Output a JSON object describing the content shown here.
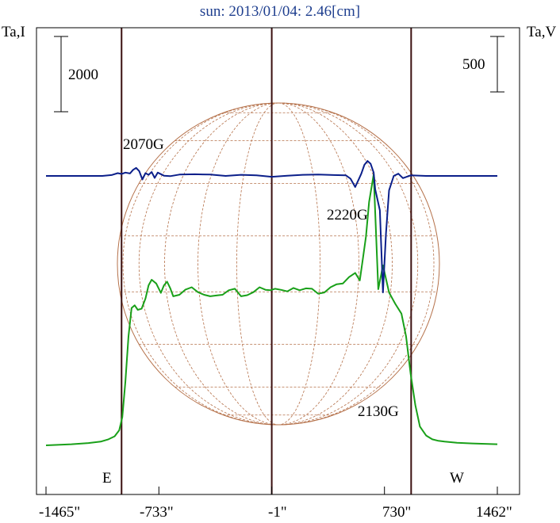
{
  "title": "sun: 2013/01/04: 2.46[cm]",
  "left_axis_label": "Ta,I",
  "right_axis_label": "Ta,V",
  "left_scale_label": "2000",
  "right_scale_label": "500",
  "east_label": "E",
  "west_label": "W",
  "x_ticks": [
    "-1465\"",
    "-733\"",
    "-1\"",
    "730\"",
    "1462\""
  ],
  "annotations": [
    "2070G",
    "2220G",
    "2130G"
  ],
  "colors": {
    "stokes_i": "#19a019",
    "stokes_v": "#0b1f8a",
    "disk": "#b5714a",
    "limb_lines": "#3b1010",
    "title": "#1f3f8f"
  },
  "chart_data": {
    "type": "line",
    "title": "sun: 2013/01/04: 2.46[cm]",
    "xlabel": "",
    "ylabel_left": "Ta,I",
    "ylabel_right": "Ta,V",
    "xlim": [
      -1465,
      1462
    ],
    "x_ticks": [
      -1465,
      -733,
      -1,
      730,
      1462
    ],
    "vertical_lines": [
      -975,
      -1,
      903
    ],
    "scale_bars": {
      "left": 2000,
      "right": 500
    },
    "series": [
      {
        "name": "",
        "axis": "left",
        "x": [
          -1465,
          -1300,
          -1190,
          -1110,
          -1060,
          -1020,
          -990,
          -970,
          -950,
          -930,
          -910,
          -890,
          -870,
          -845,
          -820,
          -800,
          -780,
          -750,
          -720,
          -700,
          -680,
          -660,
          -640,
          -600,
          -560,
          -520,
          -480,
          -440,
          -400,
          -360,
          -320,
          -280,
          -240,
          -200,
          -160,
          -120,
          -80,
          -40,
          -10,
          20,
          60,
          100,
          140,
          180,
          220,
          260,
          300,
          340,
          380,
          420,
          460,
          500,
          540,
          570,
          590,
          610,
          630,
          660,
          690,
          720,
          760,
          800,
          840,
          870,
          900,
          930,
          960,
          1000,
          1040,
          1080,
          1120,
          1200,
          1300,
          1462
        ],
        "y": [
          800,
          830,
          860,
          900,
          960,
          1040,
          1200,
          1550,
          2500,
          3700,
          4450,
          4520,
          4400,
          4430,
          4700,
          5050,
          5200,
          5100,
          4850,
          5050,
          5150,
          4980,
          4760,
          4800,
          4940,
          5000,
          4870,
          4800,
          4760,
          4780,
          4800,
          4920,
          4960,
          4760,
          4790,
          4870,
          5000,
          4930,
          4920,
          4960,
          4930,
          4890,
          4980,
          4920,
          4970,
          4960,
          4830,
          4860,
          5000,
          5080,
          5100,
          5270,
          5380,
          5180,
          5760,
          6350,
          7260,
          8000,
          4950,
          5580,
          4860,
          4560,
          4300,
          3700,
          2700,
          1870,
          1300,
          1060,
          960,
          920,
          900,
          870,
          850,
          830
        ]
      },
      {
        "name": "",
        "axis": "right",
        "x": [
          -1465,
          -1100,
          -1040,
          -1000,
          -975,
          -950,
          -920,
          -900,
          -880,
          -860,
          -840,
          -820,
          -800,
          -780,
          -760,
          -740,
          -700,
          -660,
          -600,
          -500,
          -400,
          -300,
          -200,
          -100,
          -1,
          100,
          200,
          300,
          400,
          480,
          510,
          540,
          560,
          580,
          600,
          620,
          640,
          660,
          670,
          700,
          720,
          740,
          760,
          790,
          820,
          850,
          900,
          1000,
          1100,
          1200,
          1300,
          1462
        ],
        "y": [
          0,
          0,
          8,
          25,
          18,
          30,
          22,
          55,
          72,
          42,
          -32,
          25,
          10,
          35,
          -18,
          30,
          2,
          -2,
          12,
          15,
          12,
          0,
          10,
          5,
          -8,
          2,
          10,
          12,
          8,
          5,
          -25,
          -100,
          -40,
          20,
          100,
          135,
          110,
          30,
          -120,
          -310,
          -1050,
          -520,
          -130,
          0,
          20,
          -20,
          5,
          0,
          0,
          0,
          0,
          0
        ]
      }
    ],
    "annotations": [
      {
        "text": "2070G",
        "x": -790
      },
      {
        "text": "2220G",
        "x": 520
      },
      {
        "text": "2130G",
        "x": 610
      }
    ],
    "grid": false
  }
}
